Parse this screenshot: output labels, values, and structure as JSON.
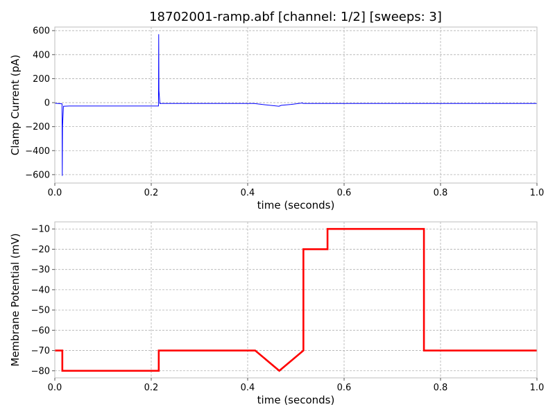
{
  "chart_data": {
    "title": "18702001-ramp.abf [channel: 1/2] [sweeps: 3]",
    "panels": [
      {
        "type": "line",
        "xlabel": "time (seconds)",
        "ylabel": "Clamp Current (pA)",
        "xlim": [
          0,
          1.0
        ],
        "ylim": [
          -670,
          630
        ],
        "xticks": [
          "0.0",
          "0.2",
          "0.4",
          "0.6",
          "0.8",
          "1.0"
        ],
        "xtick_values": [
          0,
          0.2,
          0.4,
          0.6,
          0.8,
          1.0
        ],
        "yticks": [
          "600",
          "400",
          "200",
          "0",
          "−200",
          "−400",
          "−600"
        ],
        "ytick_values": [
          600,
          400,
          200,
          0,
          -200,
          -400,
          -600
        ],
        "grid": true,
        "series": [
          {
            "color": "#0000ff",
            "x": [
              0,
              0.008,
              0.015,
              0.0155,
              0.016,
              0.018,
              0.03,
              0.1,
              0.2,
              0.215,
              0.2155,
              0.216,
              0.218,
              0.22,
              0.3,
              0.41,
              0.415,
              0.43,
              0.465,
              0.466,
              0.47,
              0.49,
              0.514,
              0.515,
              0.52,
              0.6,
              0.8,
              1.0
            ],
            "y": [
              -5,
              -8,
              -10,
              -610,
              -200,
              -30,
              -28,
              -28,
              -28,
              -28,
              570,
              100,
              -8,
              -7,
              -7,
              -7,
              -8,
              -15,
              -30,
              -28,
              -22,
              -15,
              -3,
              -7,
              -7,
              -7,
              -7,
              -7
            ]
          }
        ]
      },
      {
        "type": "line",
        "xlabel": "time (seconds)",
        "ylabel": "Membrane Potential (mV)",
        "xlim": [
          0,
          1.0
        ],
        "ylim": [
          -83.5,
          -6.5
        ],
        "xticks": [
          "0.0",
          "0.2",
          "0.4",
          "0.6",
          "0.8",
          "1.0"
        ],
        "xtick_values": [
          0,
          0.2,
          0.4,
          0.6,
          0.8,
          1.0
        ],
        "yticks": [
          "−10",
          "−20",
          "−30",
          "−40",
          "−50",
          "−60",
          "−70",
          "−80"
        ],
        "ytick_values": [
          -10,
          -20,
          -30,
          -40,
          -50,
          -60,
          -70,
          -80
        ],
        "grid": true,
        "series": [
          {
            "color": "#ff0000",
            "x": [
              0,
              0.0156,
              0.0156,
              0.2156,
              0.2156,
              0.4156,
              0.4656,
              0.5156,
              0.5156,
              0.5656,
              0.5656,
              0.7656,
              0.7656,
              1.0
            ],
            "y": [
              -70,
              -70,
              -80,
              -80,
              -70,
              -70,
              -80,
              -70,
              -20,
              -20,
              -10,
              -10,
              -70,
              -70
            ]
          }
        ]
      }
    ]
  }
}
